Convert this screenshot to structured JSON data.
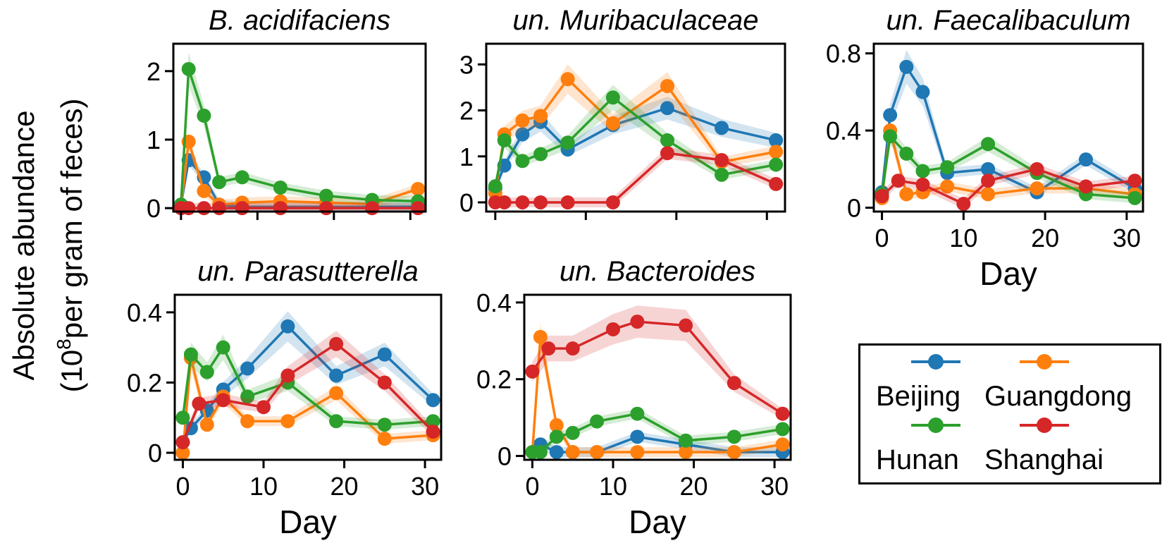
{
  "figure": {
    "ylabel_line1": "Absolute abundance",
    "ylabel_line2_pre": "(10",
    "ylabel_line2_sup": "8",
    "ylabel_line2_post": "per gram of feces)"
  },
  "legend": [
    {
      "name": "Beijing",
      "color": "#1f77b4"
    },
    {
      "name": "Guangdong",
      "color": "#ff7f0e"
    },
    {
      "name": "Hunan",
      "color": "#2ca02c"
    },
    {
      "name": "Shanghai",
      "color": "#d62728"
    }
  ],
  "chart_data": [
    {
      "type": "line",
      "title": "B. acidifaciens",
      "xlabel": "",
      "ylabel": "",
      "xlim": [
        -1,
        32
      ],
      "ylim": [
        -0.05,
        2.4
      ],
      "yticks": [
        "0",
        "1",
        "2"
      ],
      "xticks": [
        "",
        "",
        "",
        "",
        ""
      ],
      "series": [
        {
          "name": "Beijing",
          "x": [
            0,
            1,
            3,
            5,
            8,
            13,
            19,
            25,
            31
          ],
          "y": [
            0.05,
            0.7,
            0.45,
            0.05,
            0.02,
            0.02,
            0.02,
            0.02,
            0.02
          ]
        },
        {
          "name": "Guangdong",
          "x": [
            0,
            1,
            3,
            5,
            8,
            13,
            19,
            25,
            31
          ],
          "y": [
            0.02,
            0.97,
            0.25,
            0.05,
            0.08,
            0.1,
            0.08,
            0.06,
            0.28
          ]
        },
        {
          "name": "Hunan",
          "x": [
            0,
            1,
            3,
            5,
            8,
            13,
            19,
            25,
            31
          ],
          "y": [
            0.05,
            2.03,
            1.35,
            0.38,
            0.45,
            0.3,
            0.18,
            0.12,
            0.1
          ]
        },
        {
          "name": "Shanghai",
          "x": [
            0,
            1,
            3,
            5,
            8,
            13,
            19,
            25,
            31
          ],
          "y": [
            0.0,
            0.0,
            0.0,
            0.0,
            0.0,
            0.0,
            0.0,
            0.0,
            0.0
          ]
        }
      ]
    },
    {
      "type": "line",
      "title": "un. Muribaculaceae",
      "xlabel": "",
      "ylabel": "",
      "xlim": [
        -1,
        32
      ],
      "ylim": [
        -0.2,
        3.45
      ],
      "yticks": [
        "0",
        "1",
        "2",
        "3"
      ],
      "xticks": [
        "",
        "",
        "",
        "",
        ""
      ],
      "series": [
        {
          "name": "Beijing",
          "x": [
            0,
            1,
            3,
            5,
            8,
            13,
            19,
            25,
            31
          ],
          "y": [
            0.3,
            0.8,
            1.48,
            1.75,
            1.15,
            1.68,
            2.05,
            1.62,
            1.35
          ]
        },
        {
          "name": "Guangdong",
          "x": [
            0,
            1,
            3,
            5,
            8,
            13,
            19,
            25,
            31
          ],
          "y": [
            0.2,
            1.48,
            1.78,
            1.88,
            2.68,
            1.72,
            2.53,
            0.88,
            1.1
          ]
        },
        {
          "name": "Hunan",
          "x": [
            0,
            1,
            3,
            5,
            8,
            13,
            19,
            25,
            31
          ],
          "y": [
            0.35,
            1.35,
            0.9,
            1.05,
            1.3,
            2.28,
            1.35,
            0.6,
            0.82
          ]
        },
        {
          "name": "Shanghai",
          "x": [
            0,
            1,
            3,
            5,
            8,
            13,
            19,
            25,
            31
          ],
          "y": [
            0.0,
            0.0,
            0.0,
            0.0,
            0.0,
            0.0,
            1.07,
            0.92,
            0.4
          ]
        }
      ]
    },
    {
      "type": "line",
      "title": "un. Faecalibaculum",
      "xlabel": "Day",
      "ylabel": "",
      "xlim": [
        -1,
        32
      ],
      "ylim": [
        -0.02,
        0.85
      ],
      "yticks": [
        "0",
        "0.4",
        "0.8"
      ],
      "xticks": [
        "0",
        "10",
        "20",
        "30"
      ],
      "series": [
        {
          "name": "Beijing",
          "x": [
            0,
            1,
            3,
            5,
            8,
            13,
            19,
            25,
            31
          ],
          "y": [
            0.08,
            0.48,
            0.73,
            0.6,
            0.18,
            0.2,
            0.08,
            0.25,
            0.1
          ]
        },
        {
          "name": "Guangdong",
          "x": [
            0,
            1,
            3,
            5,
            8,
            13,
            19,
            25,
            31
          ],
          "y": [
            0.05,
            0.4,
            0.07,
            0.08,
            0.11,
            0.07,
            0.1,
            0.1,
            0.07
          ]
        },
        {
          "name": "Hunan",
          "x": [
            0,
            1,
            3,
            5,
            8,
            13,
            19,
            25,
            31
          ],
          "y": [
            0.07,
            0.37,
            0.28,
            0.19,
            0.21,
            0.33,
            0.18,
            0.07,
            0.05
          ]
        },
        {
          "name": "Shanghai",
          "x": [
            0,
            2,
            5,
            10,
            13,
            19,
            25,
            31
          ],
          "y": [
            0.06,
            0.14,
            0.12,
            0.02,
            0.14,
            0.2,
            0.11,
            0.14
          ]
        }
      ]
    },
    {
      "type": "line",
      "title": "un. Parasutterella",
      "xlabel": "Day",
      "ylabel": "",
      "xlim": [
        -1,
        32
      ],
      "ylim": [
        -0.02,
        0.45
      ],
      "yticks": [
        "0",
        "0.2",
        "0.4"
      ],
      "xticks": [
        "0",
        "10",
        "20",
        "30"
      ],
      "series": [
        {
          "name": "Beijing",
          "x": [
            0,
            1,
            3,
            5,
            8,
            13,
            19,
            25,
            31
          ],
          "y": [
            0.03,
            0.07,
            0.12,
            0.18,
            0.24,
            0.36,
            0.22,
            0.28,
            0.15
          ]
        },
        {
          "name": "Guangdong",
          "x": [
            0,
            1,
            3,
            5,
            8,
            13,
            19,
            25,
            31
          ],
          "y": [
            0.0,
            0.27,
            0.08,
            0.16,
            0.09,
            0.09,
            0.17,
            0.04,
            0.05
          ]
        },
        {
          "name": "Hunan",
          "x": [
            0,
            1,
            3,
            5,
            8,
            13,
            19,
            25,
            31
          ],
          "y": [
            0.1,
            0.28,
            0.23,
            0.3,
            0.16,
            0.2,
            0.09,
            0.08,
            0.09
          ]
        },
        {
          "name": "Shanghai",
          "x": [
            0,
            2,
            5,
            10,
            13,
            19,
            25,
            31
          ],
          "y": [
            0.03,
            0.14,
            0.15,
            0.13,
            0.22,
            0.31,
            0.2,
            0.06
          ]
        }
      ]
    },
    {
      "type": "line",
      "title": "un. Bacteroides",
      "xlabel": "Day",
      "ylabel": "",
      "xlim": [
        -1,
        32
      ],
      "ylim": [
        -0.01,
        0.42
      ],
      "yticks": [
        "0",
        "0.2",
        "0.4"
      ],
      "xticks": [
        "0",
        "10",
        "20",
        "30"
      ],
      "series": [
        {
          "name": "Beijing",
          "x": [
            0,
            1,
            3,
            5,
            8,
            13,
            19,
            25,
            31
          ],
          "y": [
            0.01,
            0.03,
            0.01,
            0.01,
            0.01,
            0.05,
            0.03,
            0.01,
            0.01
          ]
        },
        {
          "name": "Guangdong",
          "x": [
            0,
            1,
            3,
            5,
            8,
            13,
            19,
            25,
            31
          ],
          "y": [
            0.01,
            0.31,
            0.08,
            0.01,
            0.01,
            0.01,
            0.01,
            0.01,
            0.03
          ]
        },
        {
          "name": "Hunan",
          "x": [
            0,
            1,
            3,
            5,
            8,
            13,
            19,
            25,
            31
          ],
          "y": [
            0.01,
            0.01,
            0.05,
            0.06,
            0.09,
            0.11,
            0.04,
            0.05,
            0.07
          ]
        },
        {
          "name": "Shanghai",
          "x": [
            0,
            2,
            5,
            10,
            13,
            19,
            25,
            31
          ],
          "y": [
            0.22,
            0.28,
            0.28,
            0.33,
            0.35,
            0.34,
            0.19,
            0.11
          ]
        }
      ]
    }
  ]
}
